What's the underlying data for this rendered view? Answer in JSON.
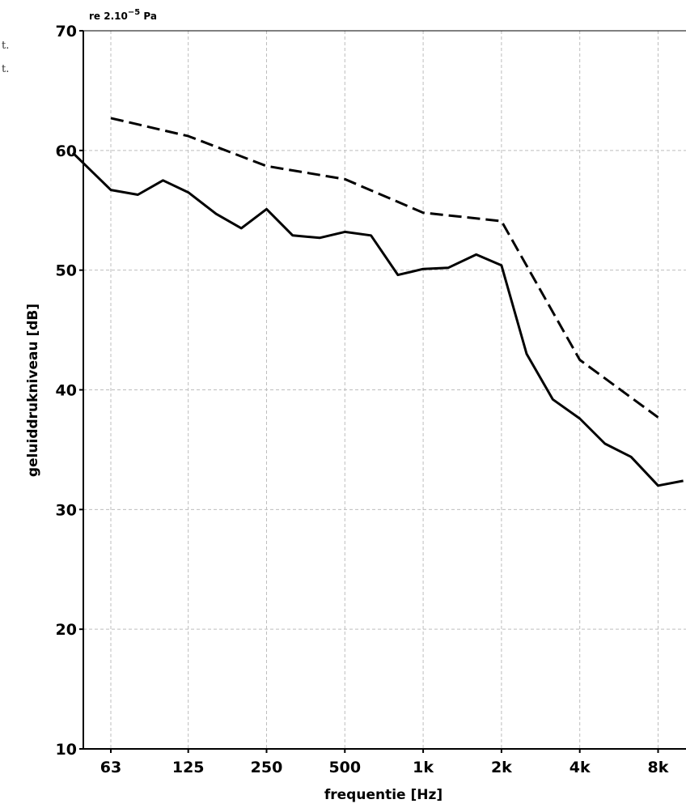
{
  "chart_data": {
    "type": "line",
    "title": "",
    "reference": {
      "base": "re 2.10",
      "exponent": "−5",
      "unit": " Pa"
    },
    "xlabel": "frequentie [Hz]",
    "ylabel": "geluiddrukniveau [dB]",
    "x_scale": "log2",
    "x_range_hz": [
      45,
      10000
    ],
    "ylim": [
      10,
      70
    ],
    "y_ticks": [
      10,
      20,
      30,
      40,
      50,
      60,
      70
    ],
    "x_ticks": [
      {
        "hz": 63,
        "label": "63"
      },
      {
        "hz": 125,
        "label": "125"
      },
      {
        "hz": 250,
        "label": "250"
      },
      {
        "hz": 500,
        "label": "500"
      },
      {
        "hz": 1000,
        "label": "1k"
      },
      {
        "hz": 2000,
        "label": "2k"
      },
      {
        "hz": 4000,
        "label": "4k"
      },
      {
        "hz": 8000,
        "label": "8k"
      }
    ],
    "grid": true,
    "legend_fragments": [
      "t.",
      "t."
    ],
    "series": [
      {
        "style": "solid",
        "color": "#000000",
        "points": [
          {
            "x": 45,
            "y": 59.8
          },
          {
            "x": 63,
            "y": 56.7
          },
          {
            "x": 80,
            "y": 56.3
          },
          {
            "x": 100,
            "y": 57.5
          },
          {
            "x": 125,
            "y": 56.5
          },
          {
            "x": 160,
            "y": 54.7
          },
          {
            "x": 200,
            "y": 53.5
          },
          {
            "x": 250,
            "y": 55.1
          },
          {
            "x": 315,
            "y": 52.9
          },
          {
            "x": 400,
            "y": 52.7
          },
          {
            "x": 500,
            "y": 53.2
          },
          {
            "x": 630,
            "y": 52.9
          },
          {
            "x": 800,
            "y": 49.6
          },
          {
            "x": 1000,
            "y": 50.1
          },
          {
            "x": 1250,
            "y": 50.2
          },
          {
            "x": 1600,
            "y": 51.3
          },
          {
            "x": 2000,
            "y": 50.4
          },
          {
            "x": 2500,
            "y": 43.0
          },
          {
            "x": 3150,
            "y": 39.2
          },
          {
            "x": 4000,
            "y": 37.6
          },
          {
            "x": 5000,
            "y": 35.5
          },
          {
            "x": 6300,
            "y": 34.4
          },
          {
            "x": 8000,
            "y": 32.0
          },
          {
            "x": 10000,
            "y": 32.4
          }
        ]
      },
      {
        "style": "dashed",
        "color": "#000000",
        "points": [
          {
            "x": 63,
            "y": 62.7
          },
          {
            "x": 125,
            "y": 61.2
          },
          {
            "x": 250,
            "y": 58.7
          },
          {
            "x": 500,
            "y": 57.6
          },
          {
            "x": 1000,
            "y": 54.8
          },
          {
            "x": 2000,
            "y": 54.1
          },
          {
            "x": 4000,
            "y": 42.5
          },
          {
            "x": 8000,
            "y": 37.7
          }
        ]
      }
    ]
  }
}
